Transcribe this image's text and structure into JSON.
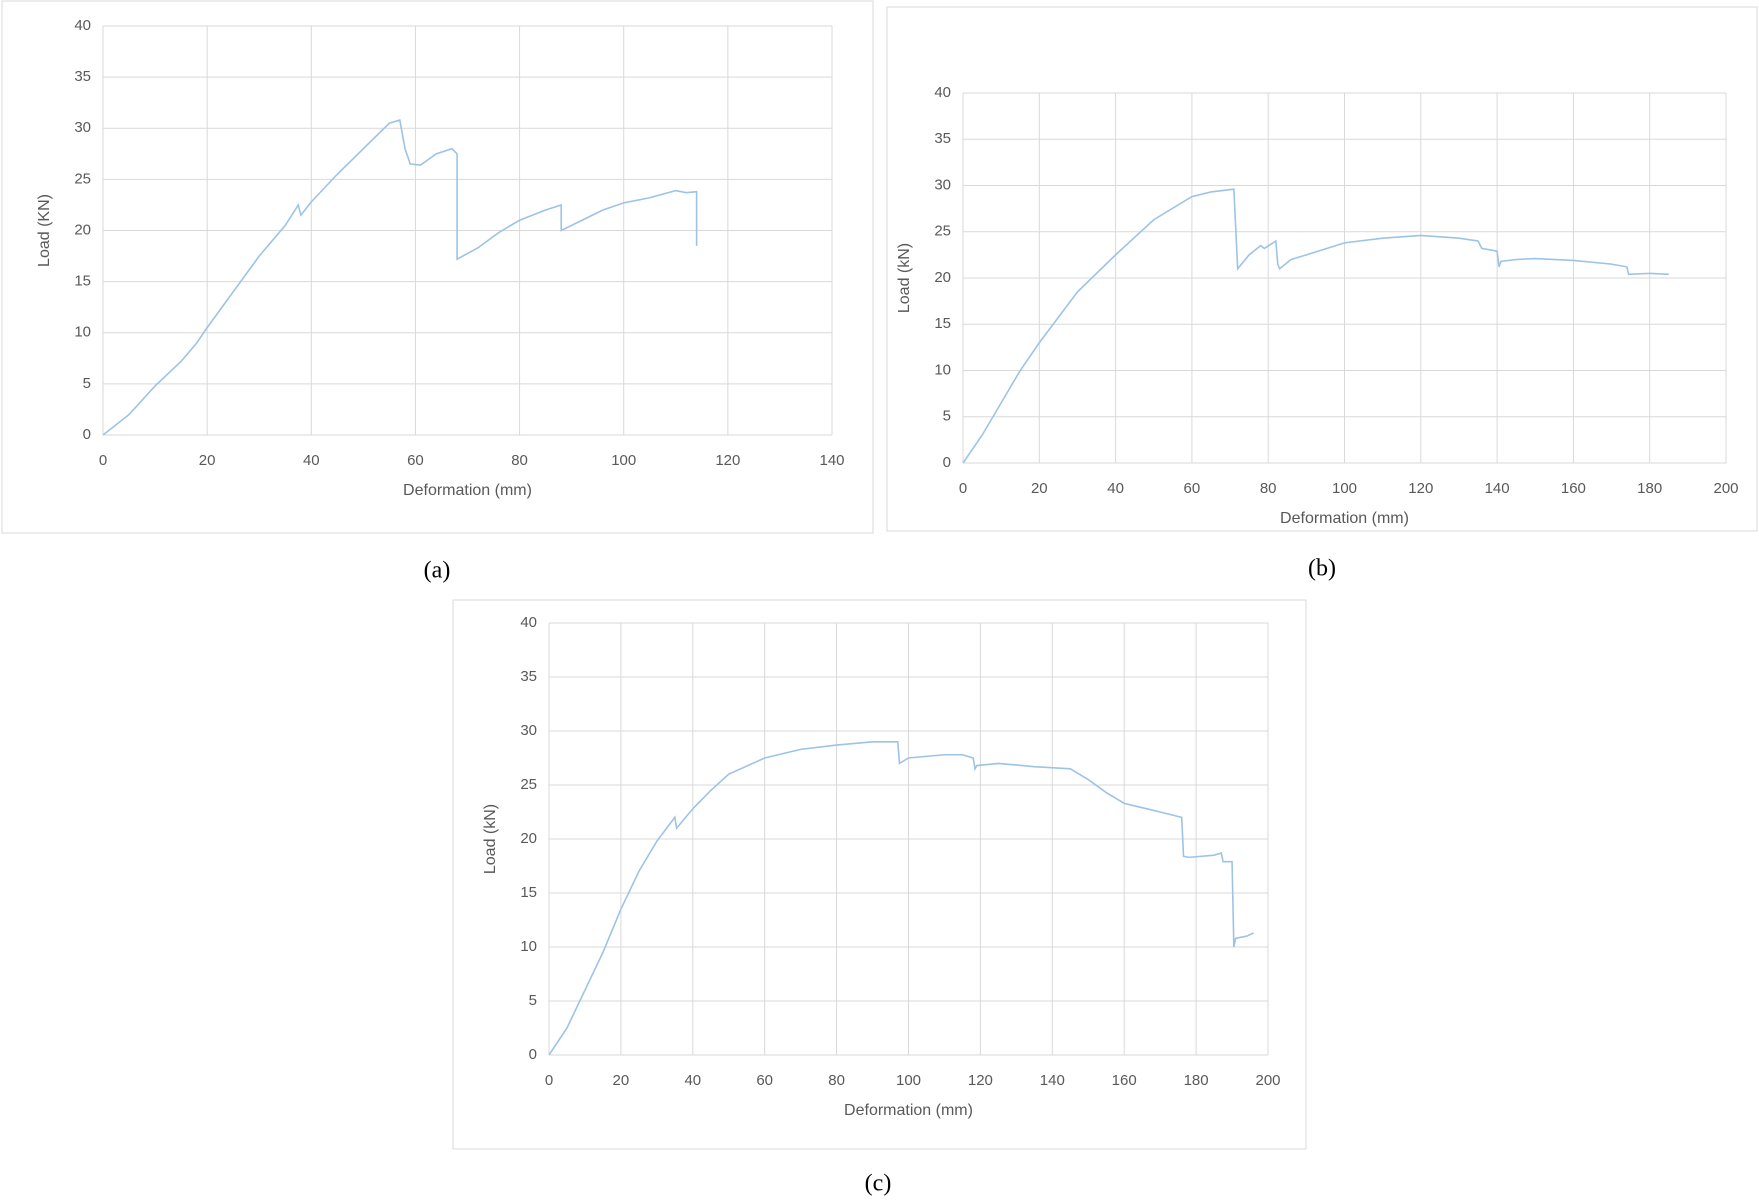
{
  "chart_data": [
    {
      "type": "line",
      "caption": "(a)",
      "xlabel": "Deformation (mm)",
      "ylabel": "Load (KN)",
      "color": "#9dc3e6",
      "grid": true,
      "xlim": [
        0,
        140
      ],
      "xticks": [
        0,
        20,
        40,
        60,
        80,
        100,
        120,
        140
      ],
      "ylim": [
        0,
        40
      ],
      "yticks": [
        0,
        5,
        10,
        15,
        20,
        25,
        30,
        35,
        40
      ],
      "x": [
        0,
        5,
        10,
        15,
        18,
        20,
        25,
        30,
        35,
        37.5,
        38,
        40,
        45,
        50,
        55,
        57,
        58,
        59,
        61,
        64,
        67,
        68,
        68,
        72,
        76,
        80,
        85,
        88,
        88,
        92,
        96,
        100,
        105,
        110,
        112,
        114,
        114
      ],
      "values": [
        0,
        2,
        4.8,
        7.2,
        9,
        10.5,
        14,
        17.5,
        20.5,
        22.5,
        21.5,
        22.8,
        25.5,
        28,
        30.5,
        30.8,
        28,
        26.5,
        26.4,
        27.5,
        28,
        27.5,
        17.2,
        18.3,
        19.8,
        21,
        22,
        22.5,
        20,
        21,
        22,
        22.7,
        23.2,
        23.9,
        23.7,
        23.8,
        18.5
      ]
    },
    {
      "type": "line",
      "caption": "(b)",
      "xlabel": "Deformation (mm)",
      "ylabel": "Load (kN)",
      "color": "#9dc3e6",
      "grid": true,
      "xlim": [
        0,
        200
      ],
      "xticks": [
        0,
        20,
        40,
        60,
        80,
        100,
        120,
        140,
        160,
        180,
        200
      ],
      "ylim": [
        0,
        40
      ],
      "yticks": [
        0,
        5,
        10,
        15,
        20,
        25,
        30,
        35,
        40
      ],
      "x": [
        0,
        5,
        10,
        15,
        20,
        30,
        40,
        50,
        60,
        65,
        71,
        72,
        75,
        78,
        79,
        82,
        82.5,
        83,
        86,
        90,
        100,
        110,
        120,
        130,
        135,
        136,
        140,
        140.5,
        141,
        145,
        150,
        160,
        170,
        174,
        174.5,
        180,
        185
      ],
      "values": [
        0,
        3,
        6.5,
        10,
        13,
        18.5,
        22.5,
        26.3,
        28.8,
        29.3,
        29.6,
        21,
        22.5,
        23.5,
        23.2,
        24,
        21.5,
        21,
        22,
        22.5,
        23.8,
        24.3,
        24.6,
        24.3,
        24,
        23.2,
        22.9,
        21.2,
        21.8,
        22,
        22.1,
        21.9,
        21.5,
        21.2,
        20.4,
        20.5,
        20.4
      ]
    },
    {
      "type": "line",
      "caption": "(c)",
      "xlabel": "Deformation (mm)",
      "ylabel": "Load (kN)",
      "color": "#9dc3e6",
      "grid": true,
      "xlim": [
        0,
        200
      ],
      "xticks": [
        0,
        20,
        40,
        60,
        80,
        100,
        120,
        140,
        160,
        180,
        200
      ],
      "ylim": [
        0,
        40
      ],
      "yticks": [
        0,
        5,
        10,
        15,
        20,
        25,
        30,
        35,
        40
      ],
      "x": [
        0,
        5,
        10,
        15,
        20,
        25,
        30,
        35,
        35.5,
        40,
        45,
        50,
        60,
        70,
        80,
        90,
        97,
        97.5,
        100,
        110,
        115,
        118,
        118.5,
        119,
        125,
        135,
        145,
        150,
        155,
        160,
        170,
        176,
        176.5,
        178,
        185,
        187,
        187.5,
        190,
        190.5,
        191,
        194,
        196
      ],
      "values": [
        0,
        2.5,
        6,
        9.5,
        13.5,
        17,
        19.8,
        22,
        21,
        22.8,
        24.5,
        26,
        27.5,
        28.3,
        28.7,
        29,
        29,
        27,
        27.5,
        27.8,
        27.8,
        27.5,
        26.5,
        26.8,
        27,
        26.7,
        26.5,
        25.5,
        24.3,
        23.3,
        22.5,
        22,
        18.4,
        18.3,
        18.5,
        18.7,
        17.9,
        17.9,
        10,
        10.8,
        11,
        11.3
      ]
    }
  ]
}
